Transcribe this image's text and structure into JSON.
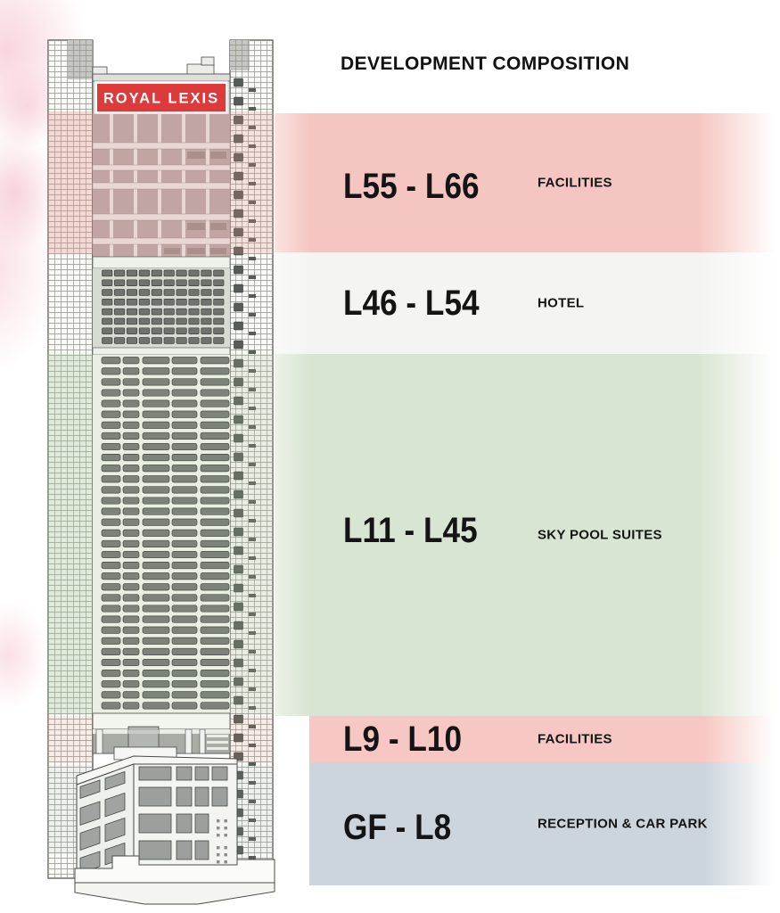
{
  "title": "DEVELOPMENT COMPOSITION",
  "building": {
    "sign_text": "ROYAL LEXIS",
    "sign_color": "#dd3a3c"
  },
  "bands": [
    {
      "range": "L55 - L66",
      "label": "FACILITIES",
      "color": "#f5c6c1"
    },
    {
      "range": "L46 - L54",
      "label": "HOTEL",
      "color": "#f4f5f2"
    },
    {
      "range": "L11 - L45",
      "label": "SKY POOL SUITES",
      "color": "#d9e5d3"
    },
    {
      "range": "L9 - L10",
      "label": "FACILITIES",
      "color": "#f7c8c3"
    },
    {
      "range": "GF - L8",
      "label": "RECEPTION & CAR PARK",
      "color": "#ccd5dc"
    }
  ]
}
